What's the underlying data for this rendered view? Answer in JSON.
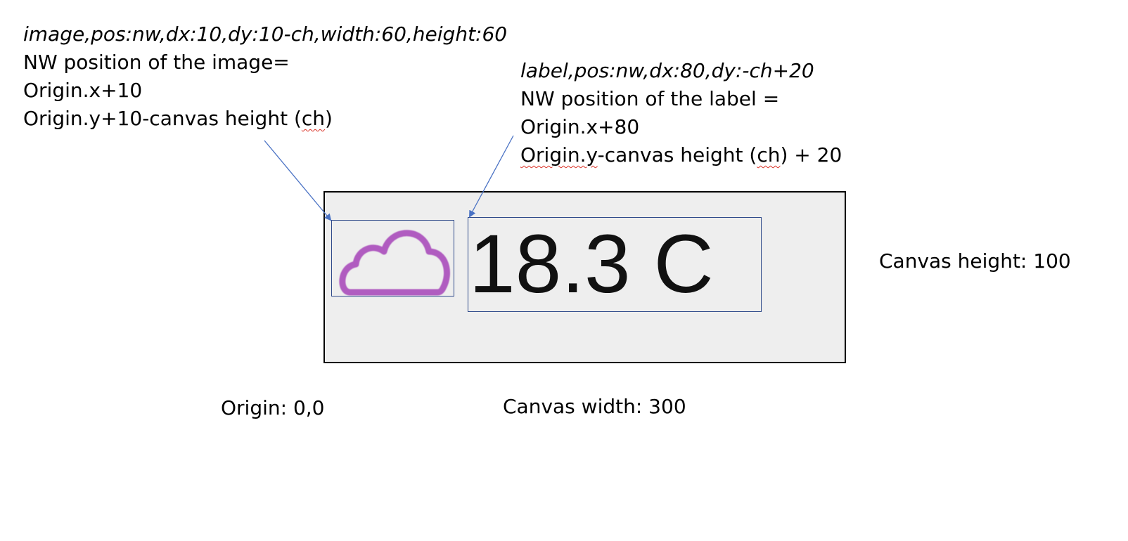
{
  "image_note": {
    "spec": "image,pos:nw,dx:10,dy:10-ch,width:60,height:60",
    "line1": "NW position of the image=",
    "line2": "Origin.x+10",
    "line3_pre": "Origin.y+10-canvas height (",
    "line3_ch": "ch",
    "line3_post": ")"
  },
  "label_note": {
    "spec": "label,pos:nw,dx:80,dy:-ch+20",
    "line1": "NW position of the label =",
    "line2": "Origin.x+80",
    "line3_origin": "Origin.y",
    "line3_mid": "-canvas height (",
    "line3_ch": "ch",
    "line3_post": ") + 20"
  },
  "canvas": {
    "label_text": "18.3 C",
    "icon": "cloud-icon",
    "icon_color": "#b05cc0",
    "background": "#eeeeee"
  },
  "labels": {
    "origin": "Origin: 0,0",
    "canvas_width": "Canvas width: 300",
    "canvas_height": "Canvas height: 100"
  },
  "colors": {
    "box_border": "#2f4a8a",
    "arrow": "#4a72c4"
  }
}
